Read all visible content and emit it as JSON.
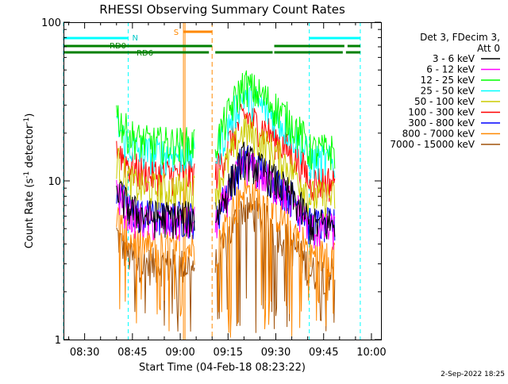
{
  "chart_data": {
    "type": "line",
    "title": "RHESSI Observing Summary Count Rates",
    "xlabel": "Start Time (04-Feb-18 08:23:22)",
    "ylabel_main": "Count Rate (s",
    "ylabel_sup1": "-1",
    "ylabel_mid": " detector",
    "ylabel_sup2": "-1",
    "ylabel_end": ")",
    "y_scale": "log",
    "ylim": [
      1,
      100
    ],
    "xlim": [
      "08:23:22",
      "10:03:00"
    ],
    "x_ticks": [
      "08:30",
      "08:45",
      "09:00",
      "09:15",
      "09:30",
      "09:45",
      "10:00"
    ],
    "y_ticks": [
      "1",
      "10",
      "100"
    ],
    "legend": {
      "header_line1": "Det 3, FDecim 3,",
      "header_line2": "Att 0",
      "placement": "right"
    },
    "series": [
      {
        "name": "3 - 6 keV",
        "color": "#000000",
        "peak": 14
      },
      {
        "name": "6 - 12 keV",
        "color": "#ff00ff",
        "peak": 13
      },
      {
        "name": "12 - 25 keV",
        "color": "#00ff00",
        "peak": 41
      },
      {
        "name": "25 - 50 keV",
        "color": "#00ffff",
        "peak": 35
      },
      {
        "name": "50 - 100 keV",
        "color": "#cccc00",
        "peak": 21
      },
      {
        "name": "100 - 300 keV",
        "color": "#ff0000",
        "peak": 26
      },
      {
        "name": "300 - 800 keV",
        "color": "#0000ff",
        "peak": 14
      },
      {
        "name": "800 - 7000 keV",
        "color": "#ff8800",
        "peak": 9
      },
      {
        "name": "7000 - 15000 keV",
        "color": "#a0520a",
        "peak": 7
      }
    ],
    "data_gaps": [
      [
        "08:23:22",
        "08:40:00"
      ],
      [
        "09:04:30",
        "09:11:00"
      ],
      [
        "09:48:30",
        "10:03:00"
      ]
    ],
    "annotations": {
      "saa_label": "S",
      "saa_start": "09:01:00",
      "saa_end": "09:10:00",
      "night_label": "N",
      "night_bars": [
        [
          "08:23:22",
          "08:43:40"
        ],
        [
          "09:40:30",
          "09:56:30"
        ]
      ],
      "night_lines": [
        "08:23:22",
        "08:43:40",
        "09:40:30",
        "09:56:30"
      ],
      "rd_labels": [
        "RD0",
        "RD6"
      ],
      "rd_bars_top": [
        [
          "08:23:22",
          "09:10:00"
        ],
        [
          "09:29:30",
          "09:51:30"
        ],
        [
          "09:52:30",
          "09:56:30"
        ]
      ],
      "rd_bars_bottom": [
        [
          "08:23:22",
          "09:09:00"
        ],
        [
          "09:11:00",
          "09:29:00"
        ],
        [
          "09:29:30",
          "09:51:00"
        ],
        [
          "09:52:00",
          "09:56:30"
        ]
      ]
    },
    "grid": false
  },
  "footer": {
    "date": "2-Sep-2022 18:25"
  }
}
